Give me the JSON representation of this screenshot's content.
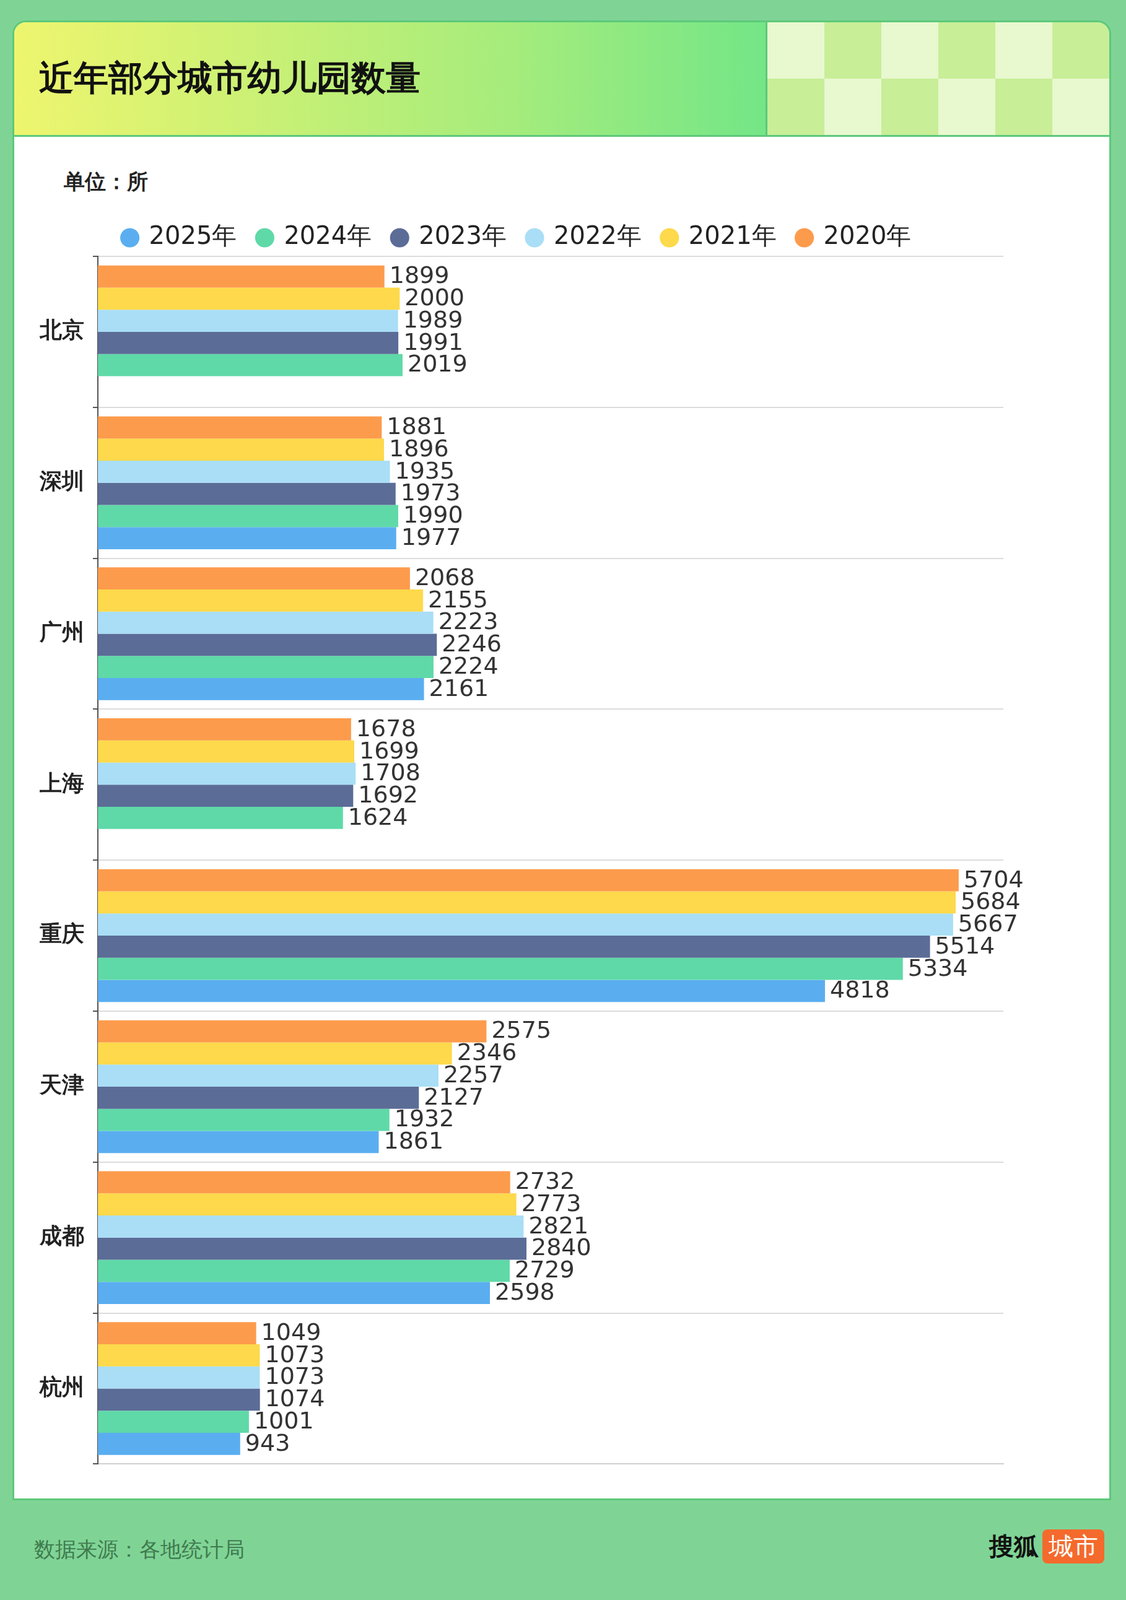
{
  "chart_data": {
    "type": "bar",
    "title": "近年部分城市幼儿园数量",
    "subtitle": "单位：所",
    "source": "数据来源：各地统计局",
    "brand": [
      "搜狐",
      "城市"
    ],
    "orientation": "horizontal",
    "categories": [
      "北京",
      "深圳",
      "广州",
      "上海",
      "重庆",
      "天津",
      "成都",
      "杭州"
    ],
    "series": [
      {
        "name": "2025年",
        "color": "#5aaef0",
        "values": [
          null,
          1977,
          2161,
          null,
          4818,
          1861,
          2598,
          943
        ]
      },
      {
        "name": "2024年",
        "color": "#5fd9a8",
        "values": [
          2019,
          1990,
          2224,
          1624,
          5334,
          1932,
          2729,
          1001
        ]
      },
      {
        "name": "2023年",
        "color": "#5b6c97",
        "values": [
          1991,
          1973,
          2246,
          1692,
          5514,
          2127,
          2840,
          1074
        ]
      },
      {
        "name": "2022年",
        "color": "#a9def6",
        "values": [
          1989,
          1935,
          2223,
          1708,
          5667,
          2257,
          2821,
          1073
        ]
      },
      {
        "name": "2021年",
        "color": "#fdd94b",
        "values": [
          2000,
          1896,
          2155,
          1699,
          5684,
          2346,
          2773,
          1073
        ]
      },
      {
        "name": "2020年",
        "color": "#fd9b4c",
        "values": [
          1899,
          1881,
          2068,
          1678,
          5704,
          2575,
          2732,
          1049
        ]
      }
    ],
    "xlim": [
      0,
      6000
    ],
    "tick_labels": "y",
    "grid": true,
    "legend": "top",
    "data_labels": true
  }
}
